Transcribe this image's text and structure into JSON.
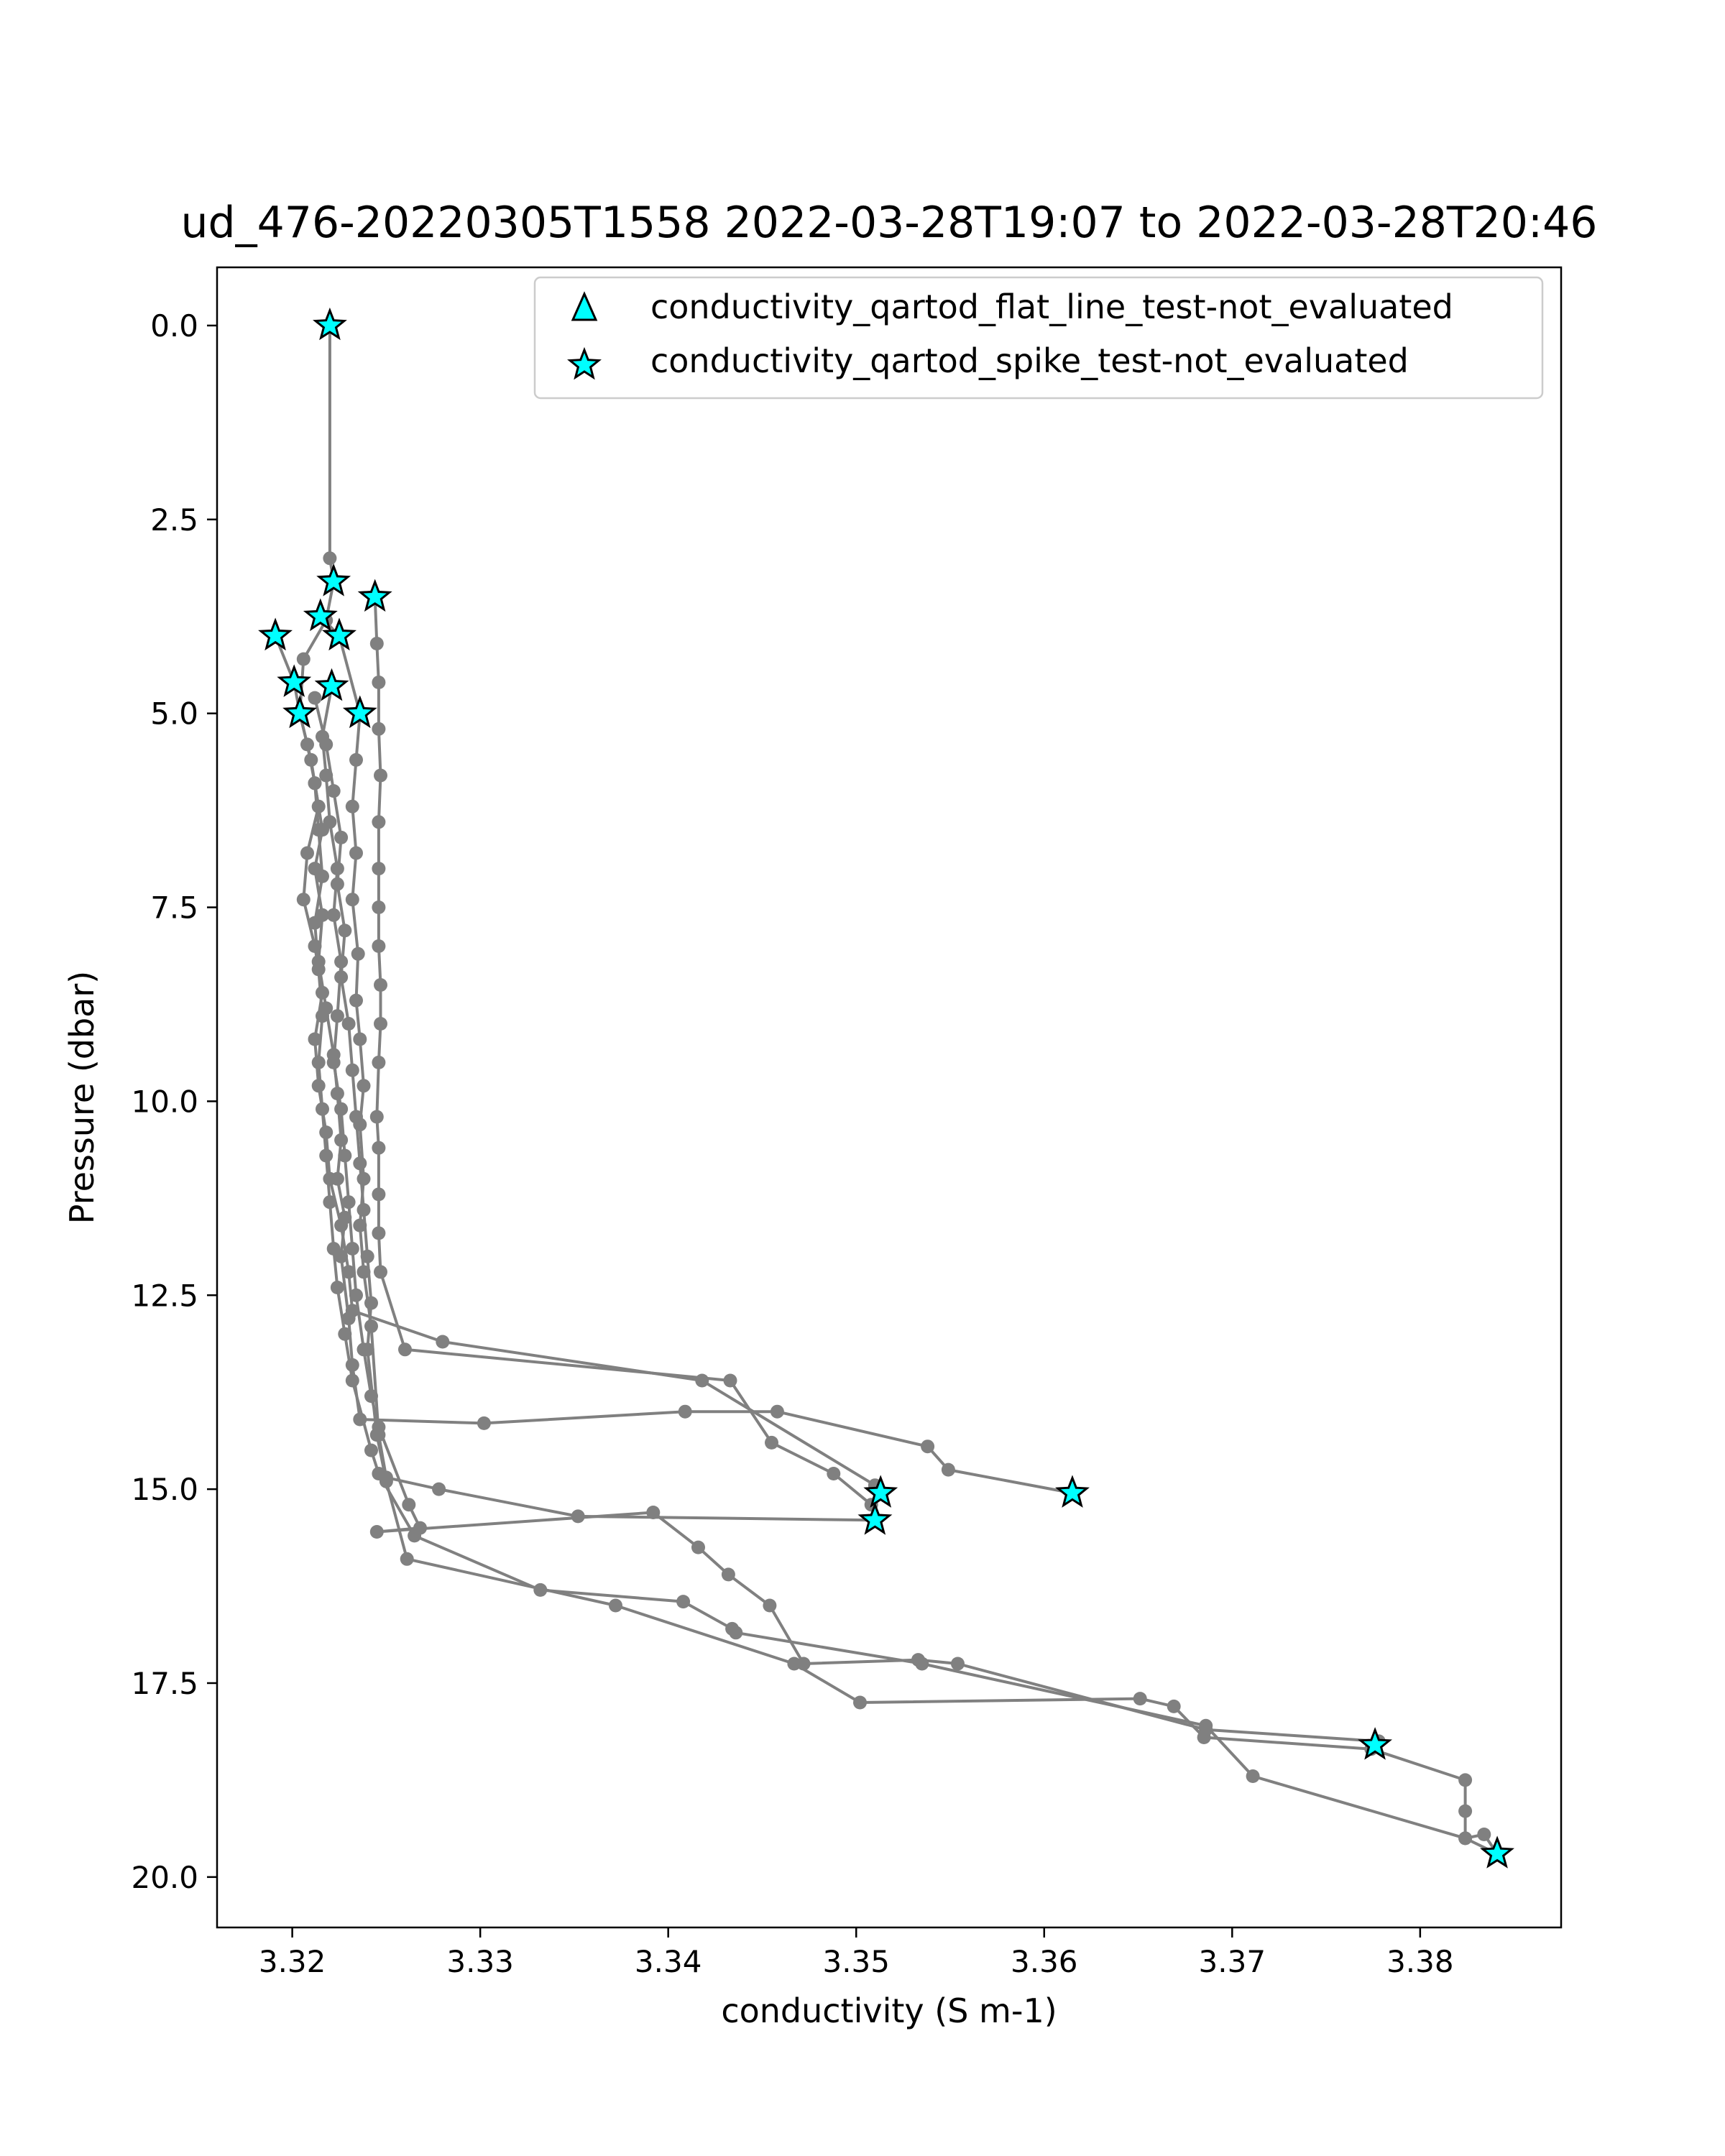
{
  "chart_data": {
    "type": "scatter",
    "title": "ud_476-20220305T1558 2022-03-28T19:07 to 2022-03-28T20:46",
    "xlabel": "conductivity (S m-1)",
    "ylabel": "Pressure (dbar)",
    "xlim": [
      3.316,
      3.3875
    ],
    "ylim": [
      20.65,
      -0.75
    ],
    "y_inverted": true,
    "grid": false,
    "legend_position": "top-right",
    "xticks": [
      "3.32",
      "3.33",
      "3.34",
      "3.35",
      "3.36",
      "3.37",
      "3.38"
    ],
    "xtick_values": [
      3.32,
      3.33,
      3.34,
      3.35,
      3.36,
      3.37,
      3.38
    ],
    "yticks": [
      "0.0",
      "2.5",
      "5.0",
      "7.5",
      "10.0",
      "12.5",
      "15.0",
      "17.5",
      "20.0"
    ],
    "ytick_values": [
      0,
      2.5,
      5,
      7.5,
      10,
      12.5,
      15,
      17.5,
      20
    ],
    "line_color": "#808080",
    "marker_color": "#00ffff",
    "legend": [
      {
        "label": "conductivity_qartod_flat_line_test-not_evaluated",
        "marker": "triangle"
      },
      {
        "label": "conductivity_qartod_spike_test-not_evaluated",
        "marker": "star"
      }
    ],
    "profiles": [
      [
        [
          3.322,
          0.0
        ],
        [
          3.322,
          3.0
        ],
        [
          3.3222,
          3.3
        ],
        [
          3.3218,
          3.8
        ],
        [
          3.3206,
          4.3
        ],
        [
          3.3204,
          5.0
        ],
        [
          3.321,
          5.6
        ],
        [
          3.3214,
          6.2
        ],
        [
          3.3208,
          6.8
        ],
        [
          3.3206,
          7.4
        ],
        [
          3.3212,
          8.0
        ],
        [
          3.3216,
          8.6
        ],
        [
          3.3212,
          9.2
        ],
        [
          3.3214,
          9.8
        ],
        [
          3.3218,
          10.4
        ],
        [
          3.322,
          11.0
        ],
        [
          3.3226,
          11.6
        ],
        [
          3.323,
          12.2
        ],
        [
          3.3232,
          12.7
        ],
        [
          3.328,
          13.1
        ],
        [
          3.3418,
          13.6
        ],
        [
          3.351,
          14.95
        ],
        [
          3.3513,
          15.05
        ]
      ],
      [
        [
          3.3244,
          3.5
        ],
        [
          3.3245,
          4.1
        ],
        [
          3.3246,
          4.6
        ],
        [
          3.3246,
          5.2
        ],
        [
          3.3247,
          5.8
        ],
        [
          3.3246,
          6.4
        ],
        [
          3.3246,
          7.0
        ],
        [
          3.3246,
          7.5
        ],
        [
          3.3246,
          8.0
        ],
        [
          3.3247,
          8.5
        ],
        [
          3.3247,
          9.0
        ],
        [
          3.3246,
          9.5
        ],
        [
          3.3245,
          10.2
        ],
        [
          3.3246,
          10.6
        ],
        [
          3.3246,
          11.2
        ],
        [
          3.3246,
          11.7
        ],
        [
          3.3247,
          12.2
        ],
        [
          3.326,
          13.2
        ],
        [
          3.3433,
          13.6
        ],
        [
          3.3455,
          14.4
        ],
        [
          3.3488,
          14.8
        ],
        [
          3.3508,
          15.2
        ],
        [
          3.351,
          15.4
        ]
      ],
      [
        [
          3.3191,
          4.0
        ],
        [
          3.3201,
          4.6
        ],
        [
          3.3204,
          5.0
        ],
        [
          3.3208,
          5.4
        ],
        [
          3.3212,
          5.9
        ],
        [
          3.3216,
          6.5
        ],
        [
          3.3212,
          7.0
        ],
        [
          3.3216,
          7.6
        ],
        [
          3.3214,
          8.2
        ],
        [
          3.3218,
          8.8
        ],
        [
          3.3222,
          9.4
        ],
        [
          3.3224,
          9.9
        ],
        [
          3.3226,
          10.5
        ],
        [
          3.3224,
          11.0
        ],
        [
          3.3228,
          11.5
        ],
        [
          3.3226,
          12.0
        ],
        [
          3.323,
          12.8
        ],
        [
          3.3232,
          13.4
        ],
        [
          3.3236,
          14.1
        ],
        [
          3.3302,
          14.15
        ],
        [
          3.3409,
          14.0
        ],
        [
          3.3458,
          14.0
        ],
        [
          3.3538,
          14.45
        ],
        [
          3.3549,
          14.75
        ],
        [
          3.3615,
          15.05
        ]
      ],
      [
        [
          3.3215,
          3.75
        ],
        [
          3.3225,
          4.0
        ],
        [
          3.3236,
          5.0
        ],
        [
          3.3234,
          5.6
        ],
        [
          3.3232,
          6.2
        ],
        [
          3.3234,
          6.8
        ],
        [
          3.3232,
          7.4
        ],
        [
          3.3235,
          8.1
        ],
        [
          3.3234,
          8.7
        ],
        [
          3.3236,
          9.2
        ],
        [
          3.3238,
          9.8
        ],
        [
          3.3236,
          10.3
        ],
        [
          3.3238,
          11.0
        ],
        [
          3.3236,
          11.6
        ],
        [
          3.3238,
          12.2
        ],
        [
          3.3242,
          12.9
        ],
        [
          3.3246,
          14.3
        ],
        [
          3.325,
          14.85
        ],
        [
          3.3278,
          15.0
        ],
        [
          3.3352,
          15.35
        ],
        [
          3.351,
          15.4
        ]
      ],
      [
        [
          3.3221,
          4.65
        ],
        [
          3.3216,
          5.3
        ],
        [
          3.3218,
          5.8
        ],
        [
          3.322,
          6.4
        ],
        [
          3.3224,
          7.0
        ],
        [
          3.3222,
          7.6
        ],
        [
          3.3226,
          8.2
        ],
        [
          3.3224,
          8.9
        ],
        [
          3.3222,
          9.5
        ],
        [
          3.3226,
          10.1
        ],
        [
          3.3228,
          10.7
        ],
        [
          3.323,
          11.3
        ],
        [
          3.3232,
          11.9
        ],
        [
          3.3234,
          12.5
        ],
        [
          3.3238,
          13.2
        ],
        [
          3.3242,
          13.8
        ],
        [
          3.3246,
          14.2
        ],
        [
          3.3262,
          15.2
        ],
        [
          3.3268,
          15.5
        ],
        [
          3.3245,
          15.55
        ],
        [
          3.3392,
          15.3
        ],
        [
          3.3416,
          15.75
        ],
        [
          3.3432,
          16.1
        ],
        [
          3.3454,
          16.5
        ],
        [
          3.3472,
          17.25
        ],
        [
          3.3533,
          17.2
        ],
        [
          3.3554,
          17.25
        ],
        [
          3.3686,
          18.1
        ],
        [
          3.3778,
          18.25
        ],
        [
          3.3776,
          18.3
        ]
      ],
      [
        [
          3.3212,
          4.8
        ],
        [
          3.3218,
          5.4
        ],
        [
          3.3222,
          6.0
        ],
        [
          3.3226,
          6.6
        ],
        [
          3.3224,
          7.2
        ],
        [
          3.3228,
          7.8
        ],
        [
          3.3226,
          8.4
        ],
        [
          3.323,
          9.0
        ],
        [
          3.3232,
          9.6
        ],
        [
          3.3234,
          10.2
        ],
        [
          3.3236,
          10.8
        ],
        [
          3.3238,
          11.4
        ],
        [
          3.324,
          12.0
        ],
        [
          3.3242,
          12.6
        ],
        [
          3.324,
          13.2
        ],
        [
          3.3245,
          14.3
        ],
        [
          3.325,
          14.9
        ],
        [
          3.3261,
          15.9
        ],
        [
          3.3372,
          16.5
        ],
        [
          3.3467,
          17.25
        ],
        [
          3.3502,
          17.75
        ],
        [
          3.3651,
          17.7
        ],
        [
          3.3669,
          17.8
        ],
        [
          3.3685,
          18.2
        ],
        [
          3.3774,
          18.35
        ],
        [
          3.3824,
          18.75
        ],
        [
          3.3824,
          19.15
        ],
        [
          3.3824,
          19.5
        ],
        [
          3.3834,
          19.45
        ],
        [
          3.3841,
          19.7
        ]
      ],
      [
        [
          3.3212,
          5.9
        ],
        [
          3.3214,
          6.5
        ],
        [
          3.3216,
          7.1
        ],
        [
          3.3212,
          7.7
        ],
        [
          3.3214,
          8.3
        ],
        [
          3.3216,
          8.9
        ],
        [
          3.3214,
          9.5
        ],
        [
          3.3216,
          10.1
        ],
        [
          3.3218,
          10.7
        ],
        [
          3.322,
          11.3
        ],
        [
          3.3222,
          11.9
        ],
        [
          3.3224,
          12.4
        ],
        [
          3.3228,
          13.0
        ],
        [
          3.3232,
          13.6
        ],
        [
          3.3242,
          14.5
        ],
        [
          3.3246,
          14.8
        ],
        [
          3.3265,
          15.6
        ],
        [
          3.3332,
          16.3
        ],
        [
          3.3408,
          16.45
        ],
        [
          3.3434,
          16.8
        ],
        [
          3.3436,
          16.85
        ],
        [
          3.3535,
          17.25
        ],
        [
          3.3686,
          18.05
        ],
        [
          3.3711,
          18.7
        ],
        [
          3.3824,
          19.5
        ],
        [
          3.3841,
          19.7
        ]
      ]
    ],
    "flagged_points": [
      [
        3.322,
        0.0
      ],
      [
        3.3222,
        3.3
      ],
      [
        3.3244,
        3.5
      ],
      [
        3.3215,
        3.75
      ],
      [
        3.3225,
        4.0
      ],
      [
        3.3191,
        4.0
      ],
      [
        3.3201,
        4.6
      ],
      [
        3.3221,
        4.65
      ],
      [
        3.3204,
        5.0
      ],
      [
        3.3236,
        5.0
      ],
      [
        3.3513,
        15.05
      ],
      [
        3.351,
        15.4
      ],
      [
        3.3615,
        15.05
      ],
      [
        3.3776,
        18.3
      ],
      [
        3.3841,
        19.7
      ]
    ]
  }
}
